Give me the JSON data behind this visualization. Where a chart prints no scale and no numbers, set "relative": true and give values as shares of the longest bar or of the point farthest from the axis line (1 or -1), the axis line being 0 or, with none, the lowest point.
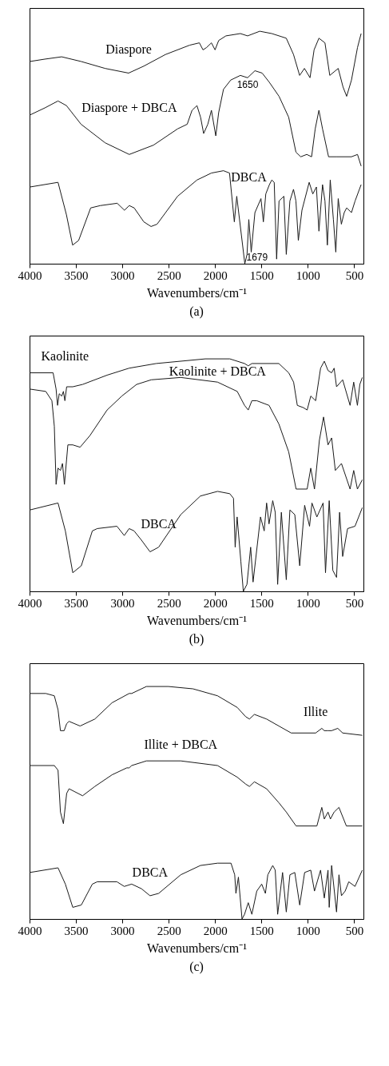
{
  "chart_data": [
    {
      "type": "line",
      "title": "(a)",
      "xlabel": "Wavenumbers/cm⁻¹",
      "relative": true,
      "xlim": [
        4000,
        400
      ],
      "xticks": [
        4000,
        3500,
        3000,
        2500,
        2000,
        1500,
        1000,
        500
      ],
      "annotations": [
        {
          "text": "1650",
          "x": 1649,
          "y": 0.8
        },
        {
          "text": "1679",
          "x": 1679,
          "y": 0.0
        }
      ],
      "series": [
        {
          "name": "Diaspore",
          "color": "#1a1a1a",
          "x": [
            3995,
            3836,
            3654,
            3445,
            3185,
            2932,
            2768,
            2534,
            2274,
            2169,
            2130,
            2091,
            2039,
            2000,
            1961,
            1883,
            1727,
            1649,
            1518,
            1388,
            1232,
            1154,
            1088,
            1036,
            976,
            932,
            880,
            815,
            763,
            672,
            620,
            581,
            529,
            464,
            425
          ],
          "values": [
            0.87,
            0.88,
            0.89,
            0.87,
            0.84,
            0.82,
            0.85,
            0.9,
            0.94,
            0.95,
            0.92,
            0.93,
            0.95,
            0.92,
            0.96,
            0.98,
            0.99,
            0.98,
            1.0,
            0.99,
            0.97,
            0.9,
            0.81,
            0.84,
            0.8,
            0.92,
            0.97,
            0.95,
            0.81,
            0.84,
            0.76,
            0.72,
            0.79,
            0.93,
            0.99
          ]
        },
        {
          "name": "Diaspore + DBCA",
          "color": "#1a1a1a",
          "x": [
            3995,
            3836,
            3693,
            3602,
            3445,
            3185,
            2925,
            2664,
            2404,
            2300,
            2248,
            2195,
            2156,
            2123,
            2078,
            2039,
            1992,
            1961,
            1909,
            1831,
            1727,
            1649,
            1570,
            1492,
            1414,
            1310,
            1206,
            1128,
            1076,
            1011,
            959,
            920,
            880,
            841,
            776,
            685,
            529,
            464,
            425
          ],
          "values": [
            0.64,
            0.67,
            0.7,
            0.68,
            0.6,
            0.52,
            0.47,
            0.51,
            0.58,
            0.6,
            0.66,
            0.68,
            0.63,
            0.56,
            0.6,
            0.66,
            0.55,
            0.65,
            0.75,
            0.79,
            0.81,
            0.8,
            0.83,
            0.82,
            0.78,
            0.72,
            0.63,
            0.48,
            0.46,
            0.47,
            0.46,
            0.58,
            0.66,
            0.58,
            0.46,
            0.46,
            0.46,
            0.47,
            0.42
          ]
        },
        {
          "name": "DBCA",
          "color": "#1a1a1a",
          "x": [
            3995,
            3693,
            3602,
            3536,
            3471,
            3341,
            3237,
            3055,
            2977,
            2925,
            2872,
            2768,
            2690,
            2625,
            2404,
            2195,
            2039,
            1909,
            1844,
            1792,
            1766,
            1679,
            1655,
            1636,
            1610,
            1570,
            1505,
            1479,
            1453,
            1414,
            1388,
            1362,
            1336,
            1310,
            1258,
            1232,
            1193,
            1154,
            1128,
            1102,
            1063,
            985,
            946,
            907,
            880,
            841,
            815,
            789,
            758,
            724,
            698,
            672,
            638,
            607,
            581,
            529,
            490,
            425
          ],
          "values": [
            0.33,
            0.35,
            0.21,
            0.08,
            0.1,
            0.24,
            0.25,
            0.26,
            0.23,
            0.25,
            0.24,
            0.18,
            0.16,
            0.17,
            0.29,
            0.36,
            0.39,
            0.4,
            0.39,
            0.18,
            0.29,
            0.0,
            0.04,
            0.19,
            0.05,
            0.22,
            0.28,
            0.18,
            0.3,
            0.34,
            0.36,
            0.35,
            0.02,
            0.27,
            0.29,
            0.04,
            0.27,
            0.32,
            0.27,
            0.1,
            0.23,
            0.35,
            0.3,
            0.33,
            0.14,
            0.34,
            0.27,
            0.08,
            0.36,
            0.19,
            0.05,
            0.28,
            0.17,
            0.22,
            0.24,
            0.22,
            0.27,
            0.34
          ]
        }
      ]
    },
    {
      "type": "line",
      "title": "(b)",
      "xlabel": "Wavenumbers/cm⁻¹",
      "relative": true,
      "xlim": [
        4000,
        400
      ],
      "xticks": [
        4000,
        3500,
        3000,
        2500,
        2000,
        1500,
        1000,
        500
      ],
      "series": [
        {
          "name": "Kaolinite",
          "color": "#1a1a1a",
          "x": [
            3997,
            3746,
            3714,
            3698,
            3680,
            3653,
            3635,
            3619,
            3600,
            3534,
            3428,
            3164,
            2926,
            2635,
            2105,
            1841,
            1682,
            1642,
            1603,
            1312,
            1206,
            1153,
            1113,
            1047,
            1007,
            968,
            915,
            862,
            822,
            782,
            743,
            716,
            690,
            624,
            544,
            505,
            465,
            439,
            412
          ],
          "values": [
            0.94,
            0.94,
            0.87,
            0.8,
            0.85,
            0.84,
            0.86,
            0.82,
            0.88,
            0.88,
            0.89,
            0.93,
            0.96,
            0.98,
            1.0,
            1.0,
            0.98,
            0.97,
            0.98,
            0.98,
            0.94,
            0.9,
            0.8,
            0.79,
            0.78,
            0.84,
            0.82,
            0.96,
            0.99,
            0.95,
            0.94,
            0.96,
            0.88,
            0.91,
            0.8,
            0.9,
            0.8,
            0.89,
            0.92
          ]
        },
        {
          "name": "Kaolinite + DBCA",
          "color": "#1a1a1a",
          "x": [
            3997,
            3825,
            3759,
            3733,
            3714,
            3693,
            3667,
            3645,
            3624,
            3587,
            3534,
            3455,
            3349,
            3164,
            3005,
            2846,
            2688,
            2370,
            1973,
            1761,
            1682,
            1642,
            1603,
            1550,
            1418,
            1312,
            1206,
            1126,
            1007,
            968,
            928,
            875,
            830,
            782,
            743,
            703,
            637,
            544,
            505,
            465,
            412
          ],
          "values": [
            0.87,
            0.86,
            0.82,
            0.71,
            0.46,
            0.53,
            0.52,
            0.55,
            0.46,
            0.63,
            0.63,
            0.62,
            0.67,
            0.78,
            0.84,
            0.89,
            0.91,
            0.92,
            0.9,
            0.86,
            0.8,
            0.78,
            0.82,
            0.82,
            0.8,
            0.72,
            0.6,
            0.44,
            0.44,
            0.53,
            0.44,
            0.65,
            0.75,
            0.63,
            0.66,
            0.52,
            0.55,
            0.44,
            0.52,
            0.44,
            0.48
          ]
        },
        {
          "name": "DBCA",
          "color": "#1a1a1a",
          "x": [
            3997,
            3693,
            3614,
            3534,
            3442,
            3323,
            3270,
            3058,
            2979,
            2926,
            2873,
            2793,
            2701,
            2608,
            2370,
            2158,
            1973,
            1841,
            1801,
            1783,
            1762,
            1722,
            1695,
            1656,
            1616,
            1590,
            1510,
            1470,
            1444,
            1418,
            1378,
            1351,
            1325,
            1285,
            1232,
            1193,
            1140,
            1087,
            1034,
            981,
            955,
            902,
            835,
            809,
            769,
            730,
            690,
            657,
            624,
            571,
            491,
            412
          ],
          "values": [
            0.35,
            0.38,
            0.26,
            0.08,
            0.11,
            0.26,
            0.27,
            0.28,
            0.24,
            0.27,
            0.26,
            0.22,
            0.17,
            0.19,
            0.33,
            0.41,
            0.43,
            0.42,
            0.4,
            0.19,
            0.32,
            0.13,
            0.0,
            0.03,
            0.19,
            0.04,
            0.32,
            0.26,
            0.38,
            0.29,
            0.39,
            0.34,
            0.03,
            0.34,
            0.05,
            0.35,
            0.33,
            0.11,
            0.37,
            0.28,
            0.38,
            0.32,
            0.38,
            0.08,
            0.39,
            0.09,
            0.06,
            0.34,
            0.15,
            0.27,
            0.28,
            0.36
          ]
        }
      ]
    },
    {
      "type": "line",
      "title": "(c)",
      "xlabel": "Wavenumbers/cm⁻¹",
      "relative": true,
      "xlim": [
        4000,
        400
      ],
      "xticks": [
        4000,
        3500,
        3000,
        2500,
        2000,
        1500,
        1000,
        500
      ],
      "series": [
        {
          "name": "Illite",
          "color": "#1a1a1a",
          "x": [
            3997,
            3825,
            3733,
            3693,
            3667,
            3627,
            3600,
            3574,
            3455,
            3296,
            3111,
            2926,
            2899,
            2740,
            2502,
            2238,
            1973,
            1761,
            1669,
            1629,
            1576,
            1444,
            1312,
            1179,
            915,
            849,
            822,
            782,
            743,
            677,
            624,
            412
          ],
          "values": [
            0.97,
            0.97,
            0.96,
            0.9,
            0.81,
            0.81,
            0.84,
            0.85,
            0.83,
            0.86,
            0.93,
            0.97,
            0.97,
            1.0,
            1.0,
            0.99,
            0.96,
            0.91,
            0.87,
            0.86,
            0.88,
            0.86,
            0.83,
            0.8,
            0.8,
            0.82,
            0.81,
            0.81,
            0.81,
            0.82,
            0.8,
            0.79
          ]
        },
        {
          "name": "Illite + DBCA",
          "color": "#1a1a1a",
          "x": [
            3997,
            3733,
            3693,
            3667,
            3635,
            3600,
            3574,
            3428,
            3296,
            3111,
            2952,
            2926,
            2899,
            2740,
            2370,
            1973,
            1761,
            1669,
            1629,
            1576,
            1444,
            1312,
            1232,
            1126,
            902,
            849,
            822,
            782,
            756,
            716,
            664,
            584,
            412
          ],
          "values": [
            0.66,
            0.66,
            0.64,
            0.46,
            0.41,
            0.54,
            0.56,
            0.53,
            0.57,
            0.62,
            0.65,
            0.65,
            0.66,
            0.68,
            0.68,
            0.66,
            0.61,
            0.58,
            0.57,
            0.59,
            0.56,
            0.5,
            0.46,
            0.4,
            0.4,
            0.48,
            0.43,
            0.46,
            0.43,
            0.46,
            0.48,
            0.4,
            0.4
          ]
        },
        {
          "name": "DBCA",
          "color": "#1a1a1a",
          "x": [
            3997,
            3693,
            3614,
            3534,
            3442,
            3323,
            3270,
            3058,
            2979,
            2899,
            2793,
            2701,
            2608,
            2370,
            2158,
            1973,
            1828,
            1788,
            1775,
            1748,
            1709,
            1682,
            1642,
            1603,
            1550,
            1497,
            1457,
            1431,
            1378,
            1351,
            1325,
            1272,
            1232,
            1193,
            1140,
            1087,
            1034,
            968,
            928,
            862,
            822,
            782,
            769,
            743,
            690,
            664,
            637,
            597,
            558,
            491,
            412
          ],
          "values": [
            0.2,
            0.22,
            0.15,
            0.05,
            0.06,
            0.15,
            0.16,
            0.16,
            0.14,
            0.15,
            0.13,
            0.1,
            0.11,
            0.19,
            0.23,
            0.24,
            0.24,
            0.19,
            0.11,
            0.18,
            0.0,
            0.02,
            0.07,
            0.02,
            0.12,
            0.15,
            0.11,
            0.19,
            0.23,
            0.21,
            0.02,
            0.2,
            0.03,
            0.19,
            0.2,
            0.06,
            0.2,
            0.21,
            0.12,
            0.21,
            0.09,
            0.21,
            0.05,
            0.23,
            0.03,
            0.19,
            0.1,
            0.12,
            0.16,
            0.14,
            0.21
          ]
        }
      ]
    }
  ]
}
